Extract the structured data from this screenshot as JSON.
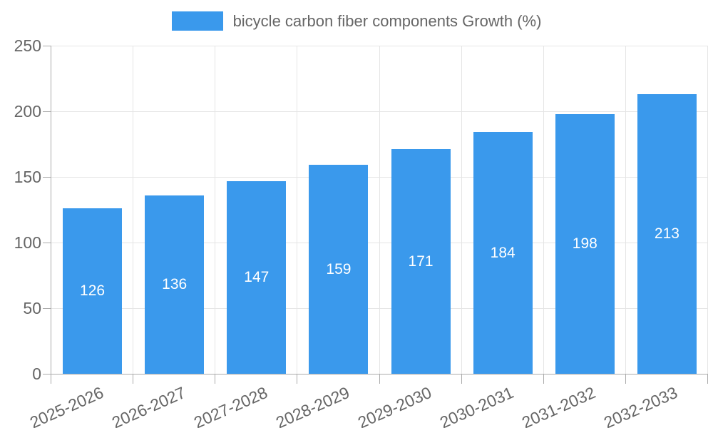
{
  "legend": {
    "label": "bicycle carbon fiber components Growth (%)"
  },
  "colors": {
    "bar": "#3A99EC",
    "grid_line": "#e5e5e5",
    "axis_line": "#ababab",
    "tick_text": "#666666",
    "value_label_text": "#ffffff",
    "background": "#ffffff"
  },
  "chart_data": {
    "type": "bar",
    "title": "",
    "categories": [
      "2025-2026",
      "2026-2027",
      "2027-2028",
      "2028-2029",
      "2029-2030",
      "2030-2031",
      "2031-2032",
      "2032-2033"
    ],
    "series": [
      {
        "name": "bicycle carbon fiber components Growth (%)",
        "values": [
          126,
          136,
          147,
          159,
          171,
          184,
          198,
          213
        ],
        "data_labels": [
          "126",
          "136",
          "147",
          "159",
          "171",
          "184",
          "198",
          "213"
        ],
        "data_label_position": "inside-center",
        "color": "#3A99EC"
      }
    ],
    "xlabel": "",
    "ylabel": "",
    "ylim": [
      0,
      250
    ],
    "yticks": [
      0,
      50,
      100,
      150,
      200,
      250
    ],
    "ytick_labels": [
      "0",
      "50",
      "100",
      "150",
      "200",
      "250"
    ],
    "grid": true,
    "legend_position": "top-center",
    "x_label_rotation_deg": -24
  }
}
